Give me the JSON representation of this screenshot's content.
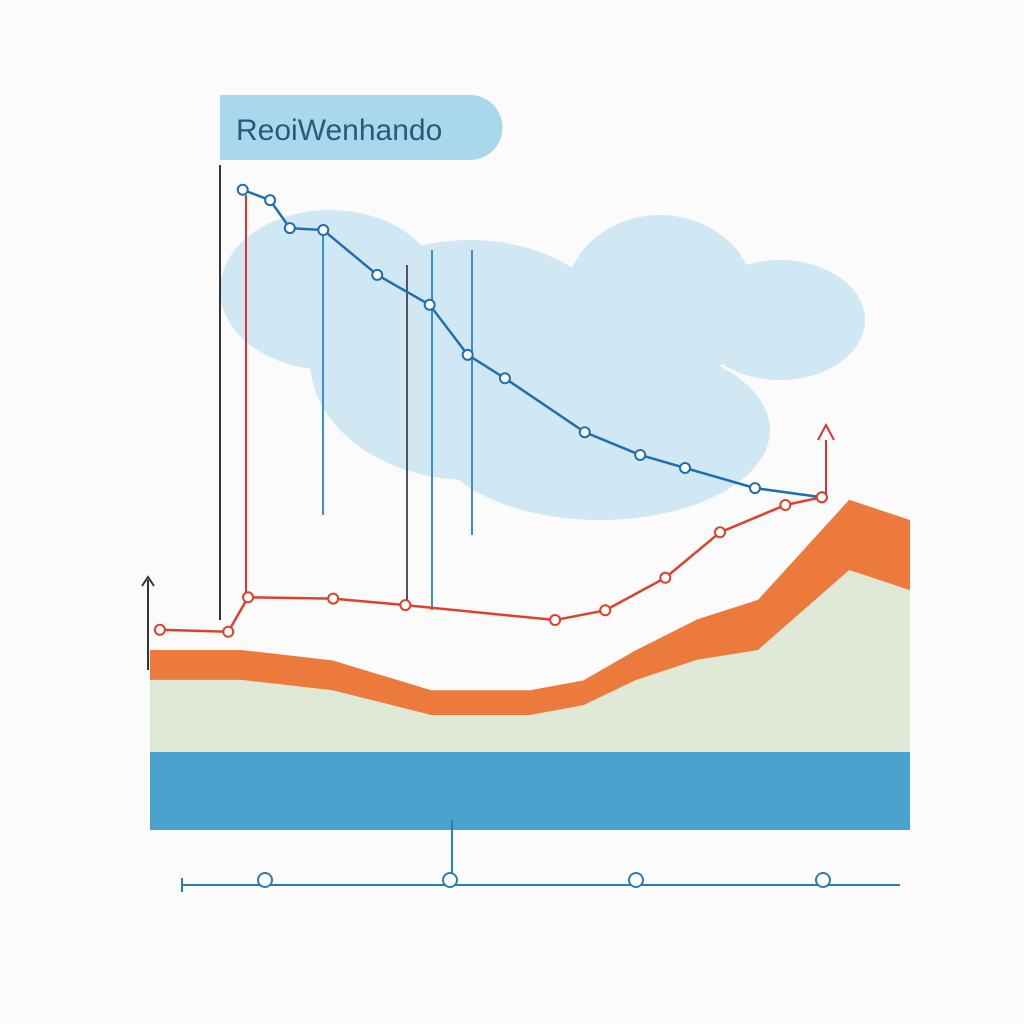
{
  "title": "ReoiWenhando",
  "chart_data": [
    {
      "type": "area",
      "x": [
        0,
        12,
        24,
        37,
        50,
        57,
        64,
        72,
        80,
        92,
        100
      ],
      "xlim": [
        0,
        100
      ],
      "ylim": [
        0,
        100
      ],
      "stacked": true,
      "series": [
        {
          "color": "#4aa3cf",
          "values": [
            12,
            12,
            12,
            12,
            12,
            12,
            12,
            12,
            12,
            12,
            12
          ]
        },
        {
          "color": "#dfe9d6",
          "values": [
            11.1,
            11.1,
            9.5,
            5.7,
            5.7,
            7.2,
            11.1,
            14.2,
            15.7,
            28.0,
            24.9
          ]
        },
        {
          "color": "#ec7a3c",
          "values": [
            4.6,
            4.6,
            4.6,
            3.8,
            3.8,
            3.8,
            4.6,
            6.2,
            7.7,
            10.8,
            10.8
          ]
        }
      ]
    },
    {
      "type": "line",
      "xlim": [
        0,
        100
      ],
      "ylim": [
        0,
        100
      ],
      "series": [
        {
          "color": "#1f6fb0",
          "x": [
            12.2,
            15.8,
            18.4,
            22.8,
            29.9,
            36.8,
            41.8,
            46.7,
            57.2,
            64.5,
            70.4,
            79.6,
            88.4
          ],
          "values": [
            98.5,
            96.9,
            92.6,
            92.3,
            85.4,
            80.8,
            73.1,
            69.5,
            61.2,
            57.7,
            55.7,
            52.6,
            51.2
          ]
        },
        {
          "color": "#e0402a",
          "x": [
            1.3,
            10.3,
            12.9,
            24.1,
            33.6,
            53.3,
            59.9,
            67.8,
            75.0,
            83.6,
            88.4
          ],
          "values": [
            30.8,
            30.5,
            35.8,
            35.6,
            34.6,
            32.3,
            33.8,
            38.8,
            45.8,
            50.0,
            51.2
          ]
        }
      ]
    }
  ]
}
